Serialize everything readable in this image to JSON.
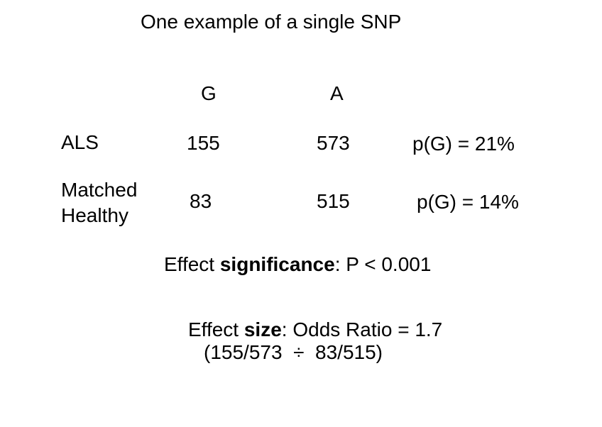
{
  "title": "One example of a single SNP",
  "table": {
    "col_headers": [
      "G",
      "A"
    ],
    "rows": [
      {
        "label": "ALS",
        "g": "155",
        "a": "573",
        "freq": "p(G) = 21%"
      },
      {
        "label": "Matched Healthy",
        "g": "83",
        "a": "515",
        "freq": "p(G) = 14%"
      }
    ]
  },
  "significance": {
    "prefix": "Effect ",
    "bold": "significance",
    "suffix": ": P < 0.001"
  },
  "effect_size": {
    "prefix": "Effect ",
    "bold": "size",
    "suffix": ": Odds Ratio = 1.7",
    "calculation": "(155/573  ÷  83/515)"
  },
  "colors": {
    "background": "#ffffff",
    "text": "#000000"
  }
}
